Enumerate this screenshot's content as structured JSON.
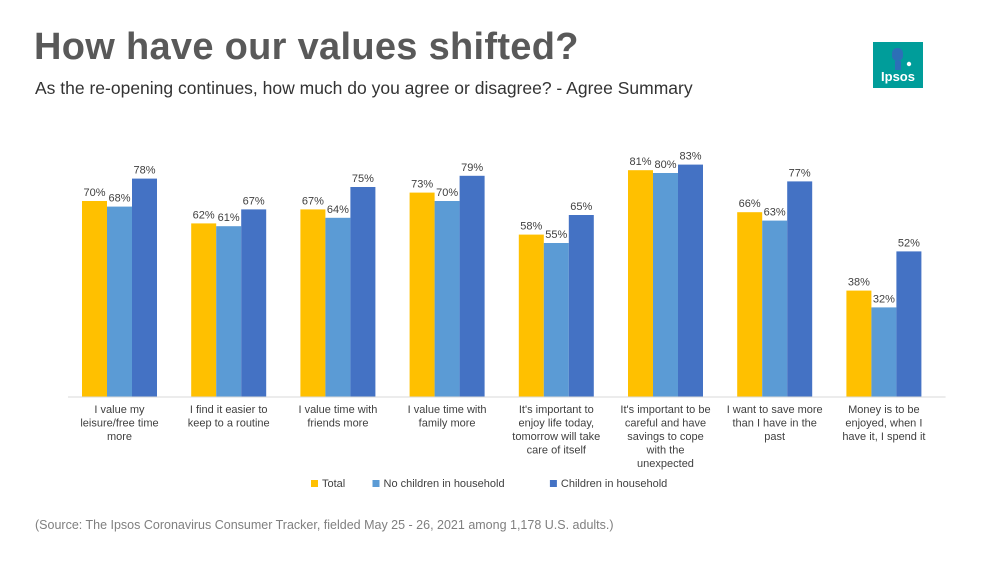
{
  "header": {
    "title": "How have our values shifted?",
    "subtitle": "As the re-opening continues, how much do you agree or disagree? - Agree Summary"
  },
  "logo": {
    "text": "Ipsos",
    "color": "#009d9a"
  },
  "footer": {
    "source": "(Source: The Ipsos Coronavirus Consumer Tracker, fielded May 25 - 26, 2021 among 1,178 U.S. adults.)"
  },
  "chart_data": {
    "type": "bar",
    "categories": [
      [
        "I value my",
        "leisure/free time",
        "more"
      ],
      [
        "I find it easier to",
        "keep to a routine"
      ],
      [
        "I value time with",
        "friends more"
      ],
      [
        "I value time with",
        "family more"
      ],
      [
        "It's important to",
        "enjoy life today,",
        "tomorrow will take",
        "care of itself"
      ],
      [
        "It's important to be",
        "careful and have",
        "savings to cope",
        "with the",
        "unexpected"
      ],
      [
        "I want to save more",
        "than I have in the",
        "past"
      ],
      [
        "Money is to be",
        "enjoyed, when I",
        "have it, I spend it"
      ]
    ],
    "series": [
      {
        "name": "Total",
        "color": "#ffc000",
        "values": [
          70,
          62,
          67,
          73,
          58,
          81,
          66,
          38
        ]
      },
      {
        "name": "No children in household",
        "color": "#5b9bd5",
        "values": [
          68,
          61,
          64,
          70,
          55,
          80,
          63,
          32
        ]
      },
      {
        "name": "Children in household",
        "color": "#4472c4",
        "values": [
          78,
          67,
          75,
          79,
          65,
          83,
          77,
          52
        ]
      }
    ],
    "value_suffix": "%",
    "ylim": [
      0,
      100
    ],
    "grid": false,
    "legend_position": "bottom"
  }
}
